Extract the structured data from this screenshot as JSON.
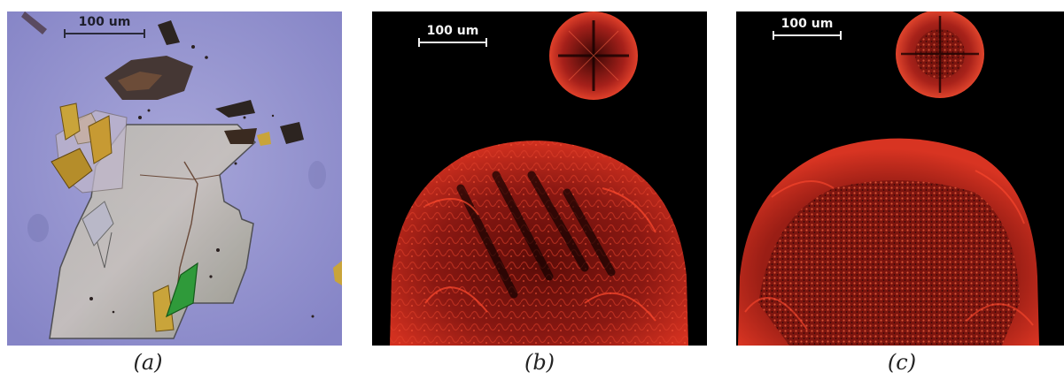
{
  "panels": [
    {
      "id": "a",
      "caption": "(a)",
      "scale_label": "100 um",
      "modality": "bright-field"
    },
    {
      "id": "b",
      "caption": "(b)",
      "scale_label": "100 um",
      "modality": "polarized"
    },
    {
      "id": "c",
      "caption": "(c)",
      "scale_label": "100 um",
      "modality": "polarized"
    }
  ],
  "colors": {
    "bright_field_background": "#8f8fcf",
    "polarized_background": "#000000",
    "birefringence_red": "#c8281e",
    "green_flake": "#2f9a3a",
    "yellow_flake": "#c9a43a"
  }
}
